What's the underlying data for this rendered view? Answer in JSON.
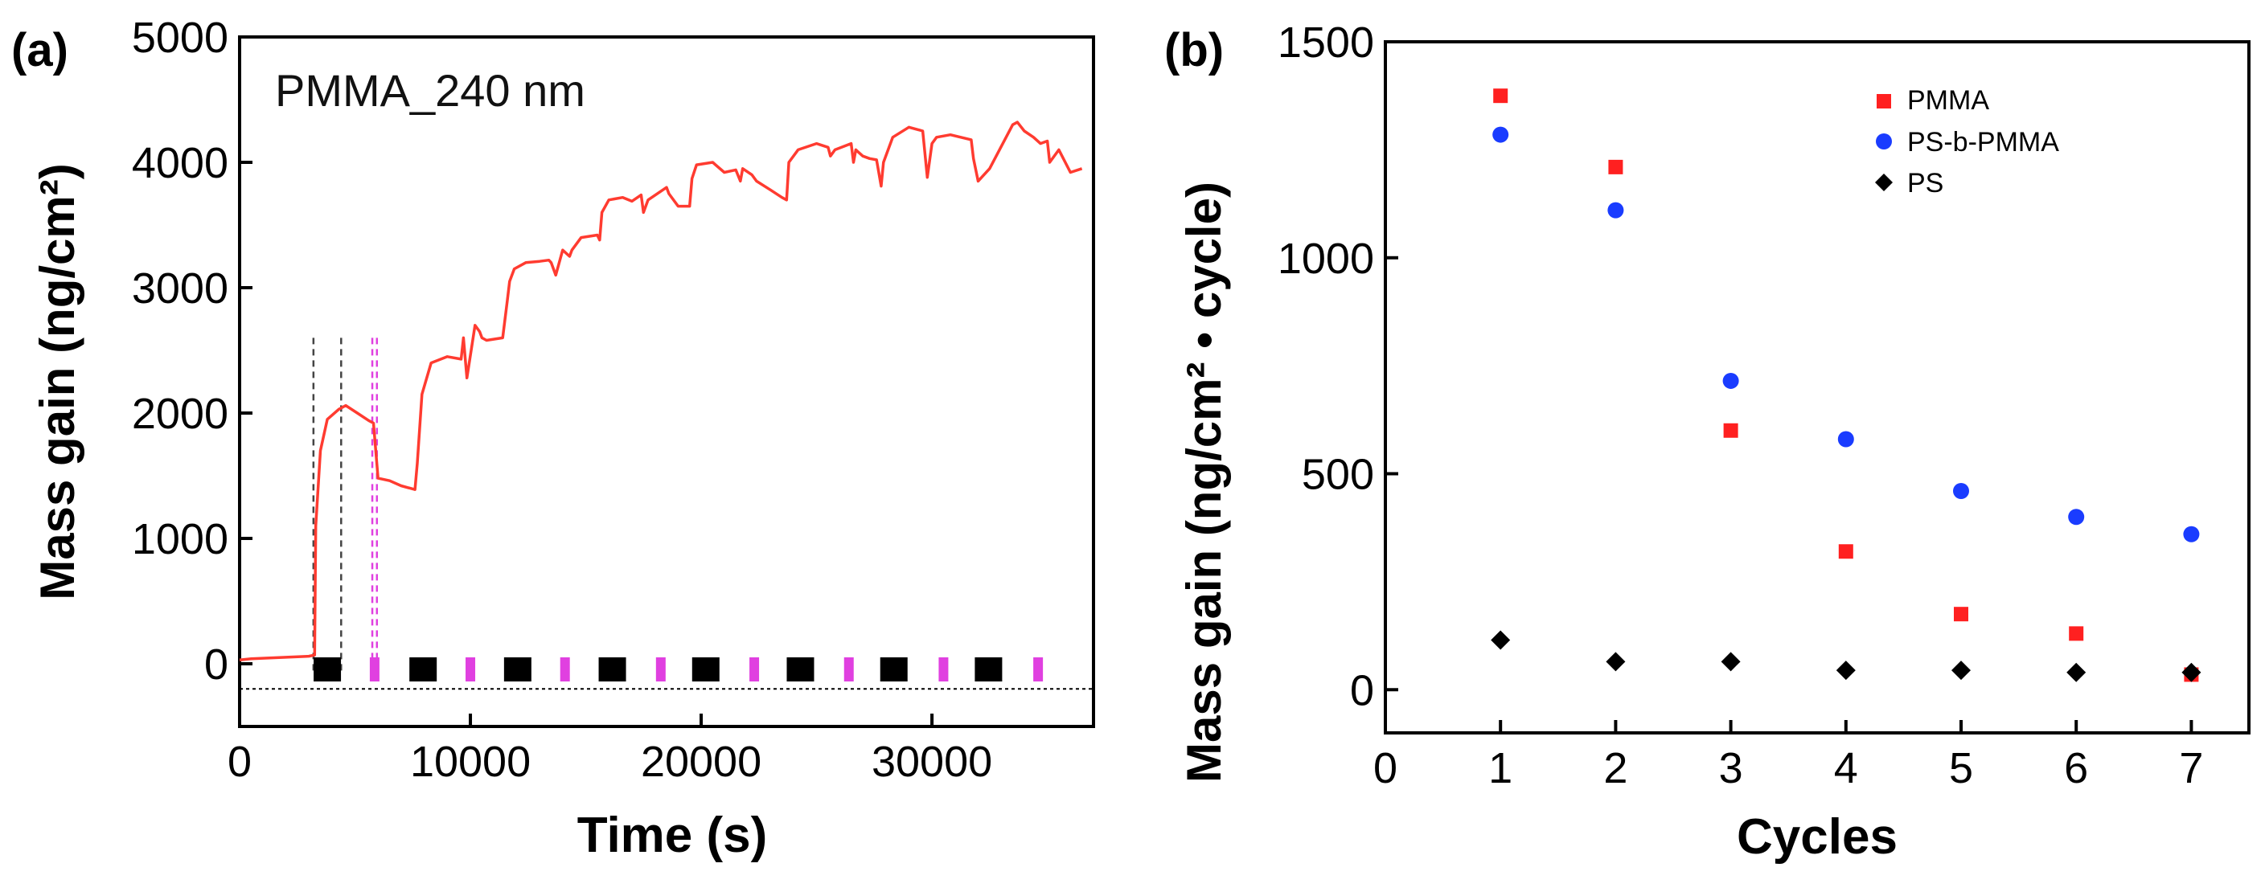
{
  "chart_data": [
    {
      "panel": "(a)",
      "type": "line",
      "annotation": "PMMA_240 nm",
      "xlabel": "Time (s)",
      "ylabel": "Mass gain  (ng/cm²)",
      "xlim": [
        0,
        37000
      ],
      "ylim": [
        -500,
        5000
      ],
      "xticks": [
        0,
        10000,
        20000,
        30000
      ],
      "yticks": [
        0,
        1000,
        2000,
        3000,
        4000,
        5000
      ],
      "colors": {
        "line": "#ff3b30",
        "tma_pulse": "#000000",
        "water_pulse": "#e040e0",
        "guide_gray": "#444444"
      },
      "series": [
        {
          "name": "PMMA_240 nm",
          "x": [
            0,
            500,
            3000,
            3250,
            3300,
            3500,
            3800,
            4300,
            4600,
            5100,
            5600,
            5800,
            6000,
            6500,
            7000,
            7600,
            7700,
            7900,
            8300,
            9000,
            9600,
            9700,
            9850,
            10200,
            10400,
            10500,
            10700,
            11400,
            11600,
            11700,
            11900,
            12400,
            13000,
            13400,
            13500,
            13700,
            14000,
            14300,
            14400,
            14800,
            15500,
            15600,
            15700,
            16000,
            16600,
            17000,
            17400,
            17500,
            17700,
            18500,
            18600,
            19000,
            19500,
            19600,
            19800,
            20500,
            21000,
            21500,
            21700,
            21800,
            22200,
            22400,
            23000,
            23500,
            23700,
            23800,
            24200,
            25000,
            25500,
            25600,
            25800,
            26500,
            26600,
            26700,
            27000,
            27300,
            27600,
            27800,
            27900,
            28300,
            29000,
            29400,
            29600,
            29800,
            30000,
            30200,
            30800,
            31700,
            31800,
            32000,
            32500,
            33500,
            33700,
            34000,
            34400,
            34700,
            35000,
            35100,
            35500,
            36000,
            36500
          ],
          "y": [
            30,
            40,
            60,
            70,
            1100,
            1700,
            1950,
            2030,
            2060,
            2000,
            1940,
            1920,
            1480,
            1460,
            1420,
            1390,
            1600,
            2150,
            2400,
            2450,
            2430,
            2600,
            2280,
            2700,
            2650,
            2600,
            2580,
            2600,
            2900,
            3050,
            3150,
            3200,
            3210,
            3220,
            3200,
            3100,
            3300,
            3250,
            3300,
            3400,
            3420,
            3380,
            3600,
            3700,
            3720,
            3690,
            3740,
            3600,
            3700,
            3800,
            3750,
            3650,
            3650,
            3870,
            3980,
            4000,
            3920,
            3940,
            3850,
            3950,
            3900,
            3850,
            3780,
            3720,
            3700,
            4000,
            4100,
            4150,
            4120,
            4050,
            4100,
            4150,
            4000,
            4100,
            4050,
            4030,
            4020,
            3810,
            4000,
            4200,
            4280,
            4260,
            4250,
            3880,
            4150,
            4200,
            4220,
            4180,
            4030,
            3850,
            3950,
            4300,
            4320,
            4250,
            4200,
            4150,
            4170,
            4000,
            4100,
            3920,
            3950
          ]
        }
      ],
      "pulse_guides_x": [
        3200,
        4400,
        5750,
        5950
      ],
      "pulse_guides_top": 2600,
      "baseline_y": -200,
      "tma_pulses_x": [
        3800,
        7950,
        12050,
        16150,
        20200,
        24300,
        28350,
        32450
      ],
      "water_pulses_x": [
        5850,
        10000,
        14100,
        18250,
        22300,
        26400,
        30500,
        34600
      ]
    },
    {
      "panel": "(b)",
      "type": "scatter",
      "xlabel": "Cycles",
      "ylabel": "Mass gain  (ng/cm² • cycle)",
      "xlim": [
        0,
        7.5
      ],
      "ylim": [
        -100,
        1500
      ],
      "xticks": [
        0,
        1,
        2,
        3,
        4,
        5,
        6,
        7
      ],
      "yticks": [
        0,
        500,
        1000,
        1500
      ],
      "legend_position": "top-right",
      "series": [
        {
          "name": "PMMA",
          "marker": "square",
          "color": "#ff2020",
          "x": [
            1,
            2,
            3,
            4,
            5,
            6,
            7
          ],
          "y": [
            1375,
            1210,
            600,
            320,
            175,
            130,
            35
          ]
        },
        {
          "name": "PS-b-PMMA",
          "marker": "circle",
          "color": "#1a3cff",
          "x": [
            1,
            2,
            3,
            4,
            5,
            6,
            7
          ],
          "y": [
            1285,
            1110,
            715,
            580,
            460,
            400,
            360
          ]
        },
        {
          "name": "PS",
          "marker": "diamond",
          "color": "#000000",
          "x": [
            1,
            2,
            3,
            4,
            5,
            6,
            7
          ],
          "y": [
            115,
            65,
            65,
            45,
            45,
            40,
            40
          ]
        }
      ]
    }
  ]
}
